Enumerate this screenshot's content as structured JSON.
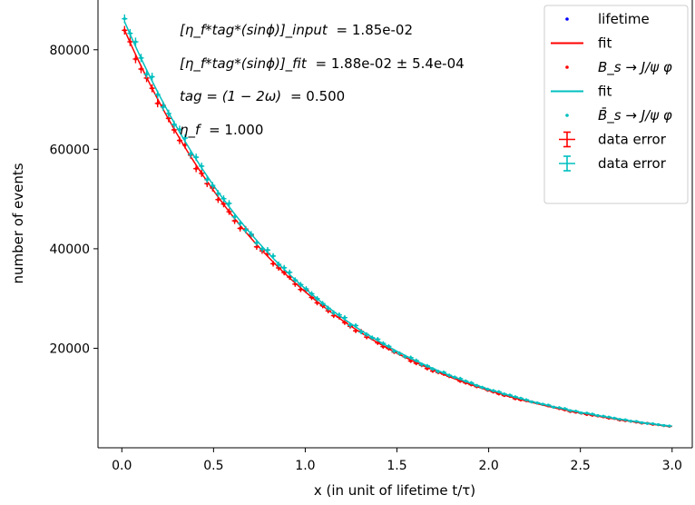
{
  "chart_data": {
    "type": "scatter",
    "title": "",
    "xlabel": "x (in unit of lifetime t/τ)",
    "ylabel": "number of events",
    "xlim": [
      -0.13,
      3.11
    ],
    "ylim": [
      0,
      90000
    ],
    "xticks": [
      0.0,
      0.5,
      1.0,
      1.5,
      2.0,
      2.5,
      3.0
    ],
    "xtick_labels": [
      "0.0",
      "0.5",
      "1.0",
      "1.5",
      "2.0",
      "2.5",
      "3.0"
    ],
    "yticks": [
      20000,
      40000,
      60000,
      80000
    ],
    "ytick_labels": [
      "20000",
      "40000",
      "60000",
      "80000"
    ],
    "grid": false,
    "legend_position": "top-right",
    "model": {
      "amplitude": 86500,
      "decay": 1.0,
      "x_start": 0.015,
      "x_end": 2.985,
      "n_points": 100
    },
    "series": [
      {
        "name": "lifetime",
        "kind": "points",
        "color": "#0000ff"
      },
      {
        "name": "fit",
        "kind": "line",
        "color": "#ff0000"
      },
      {
        "name": "B_s → J/ψ φ",
        "kind": "points",
        "color": "#ff0000",
        "scale": 0.985,
        "seed": 7
      },
      {
        "name": "fit",
        "kind": "line",
        "color": "#00bfbf"
      },
      {
        "name": "B̄_s → J/ψ φ",
        "kind": "points",
        "color": "#00bfbf",
        "scale": 1.005,
        "seed": 13
      },
      {
        "name": "data error",
        "kind": "errorbar",
        "color": "#ff0000"
      },
      {
        "name": "data error",
        "kind": "errorbar",
        "color": "#00bfbf"
      }
    ],
    "annotations": [
      {
        "label": "[η_f*tag*(sinϕ)]_input",
        "value": "= 1.85e-02"
      },
      {
        "label": "[η_f*tag*(sinϕ)]_fit",
        "value": "= 1.88e-02 ± 5.4e-04"
      },
      {
        "label": "tag = (1 − 2ω)",
        "value": "= 0.500"
      },
      {
        "label": "η_f",
        "value": "= 1.000"
      }
    ]
  },
  "legend": {
    "entries": [
      {
        "label": "lifetime",
        "marker": "dot",
        "color": "#0000ff"
      },
      {
        "label": "fit",
        "marker": "line",
        "color": "#ff0000"
      },
      {
        "label": "B_s → J/ψ φ",
        "marker": "dot",
        "color": "#ff0000"
      },
      {
        "label": "fit",
        "marker": "line",
        "color": "#00bfbf"
      },
      {
        "label": "B̄_s → J/ψ φ",
        "marker": "dot",
        "color": "#00bfbf"
      },
      {
        "label": "data error",
        "marker": "errorbar",
        "color": "#ff0000"
      },
      {
        "label": "data error",
        "marker": "errorbar",
        "color": "#00bfbf"
      }
    ]
  }
}
